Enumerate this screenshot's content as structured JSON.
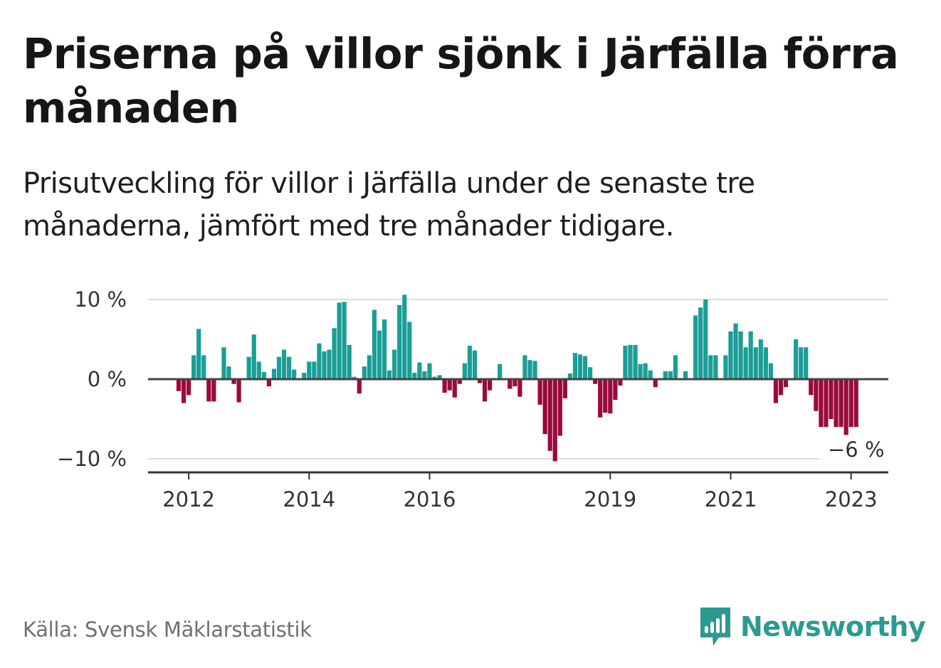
{
  "title": "Priserna på villor sjönk i Järfälla förra månaden",
  "subtitle": "Prisutveckling för villor i Järfälla under de senaste tre månaderna, jämfört med tre månader tidigare.",
  "source": "Källa: Svensk Mäklarstatistik",
  "brand": {
    "name": "Newsworthy",
    "icon": "newsworthy-logo-icon",
    "color": "#2c9a90"
  },
  "colors": {
    "positive": "#1a9e96",
    "negative": "#9a0a3c",
    "grid": "#dddddd",
    "zero_line": "#444444",
    "axis": "#333333"
  },
  "chart_data": {
    "type": "bar",
    "title": "Priserna på villor sjönk i Järfälla förra månaden",
    "xlabel": "",
    "ylabel": "",
    "ylim": [
      -12,
      12
    ],
    "y_ticks": [
      10,
      0,
      -10
    ],
    "y_tick_labels": [
      "10 %",
      "0 %",
      "−10 %"
    ],
    "x_ticks": [
      2012,
      2014,
      2016,
      2019,
      2021,
      2023
    ],
    "x_tick_labels": [
      "2012",
      "2014",
      "2016",
      "2019",
      "2021",
      "2023"
    ],
    "start": "2011-11",
    "frequency": "monthly",
    "grid": true,
    "annotation": {
      "text": "−6 %",
      "target": "last"
    },
    "values": [
      -1.5,
      -3.0,
      -2.0,
      3.0,
      6.3,
      3.0,
      -2.8,
      -2.8,
      0,
      4.0,
      1.6,
      -0.6,
      -2.9,
      0,
      2.8,
      5.6,
      2.2,
      0.9,
      -0.9,
      1.3,
      2.8,
      3.7,
      2.8,
      1.2,
      0,
      0.8,
      2.2,
      2.2,
      4.5,
      3.5,
      3.7,
      6.4,
      9.6,
      9.7,
      4.3,
      0.3,
      -1.8,
      1.6,
      3.0,
      8.7,
      6.1,
      7.5,
      1.1,
      3.7,
      9.3,
      10.6,
      7.2,
      0.8,
      2.1,
      1.0,
      2.0,
      0.3,
      0.5,
      -1.7,
      -1.4,
      -2.3,
      -0.6,
      2.0,
      4.2,
      3.6,
      -0.5,
      -2.8,
      -1.4,
      0,
      1.9,
      0,
      -1.2,
      -0.9,
      -2.2,
      3.0,
      2.4,
      2.3,
      -3.2,
      -6.9,
      -9.0,
      -10.3,
      -7.1,
      -2.4,
      0.7,
      3.3,
      3.1,
      2.9,
      1.5,
      -0.6,
      -4.8,
      -4.2,
      -4.3,
      -2.6,
      -0.8,
      4.2,
      4.3,
      4.3,
      1.9,
      2.0,
      1.1,
      -1.0,
      0,
      1.0,
      1.0,
      3.0,
      0,
      1.0,
      0,
      8.0,
      9.0,
      10.0,
      3.0,
      3.0,
      0,
      3.0,
      6.0,
      7.0,
      6.0,
      4.0,
      6.0,
      4.0,
      5.0,
      4.0,
      2.0,
      -3.0,
      -2.0,
      -1.0,
      0,
      5.0,
      4.0,
      4.0,
      -2.0,
      -4.0,
      -6.0,
      -6.0,
      -5.0,
      -6.0,
      -6.0,
      -7.0,
      -6.0,
      -6.0
    ]
  }
}
